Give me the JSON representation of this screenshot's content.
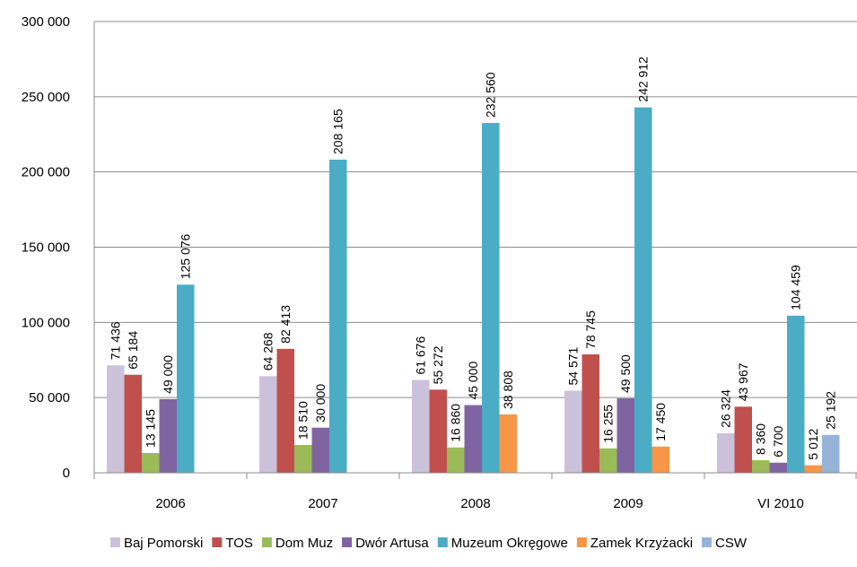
{
  "chart_data": {
    "type": "bar",
    "categories": [
      "2006",
      "2007",
      "2008",
      "2009",
      "VI 2010"
    ],
    "series": [
      {
        "name": "Baj Pomorski",
        "color": "#ccc1da",
        "values": [
          71436,
          64268,
          61676,
          54571,
          26324
        ],
        "labels": [
          "71 436",
          "64 268",
          "61 676",
          "54 571",
          "26 324"
        ]
      },
      {
        "name": "TOS",
        "color": "#c0504d",
        "values": [
          65184,
          82413,
          55272,
          78745,
          43967
        ],
        "labels": [
          "65 184",
          "82 413",
          "55 272",
          "78 745",
          "43 967"
        ]
      },
      {
        "name": "Dom Muz",
        "color": "#9bbb59",
        "values": [
          13145,
          18510,
          16860,
          16255,
          8360
        ],
        "labels": [
          "13 145",
          "18 510",
          "16 860",
          "16 255",
          "8 360"
        ]
      },
      {
        "name": "Dwór Artusa",
        "color": "#8064a2",
        "values": [
          49000,
          30000,
          45000,
          49500,
          6700
        ],
        "labels": [
          "49 000",
          "30 000",
          "45 000",
          "49 500",
          "6 700"
        ]
      },
      {
        "name": "Muzeum Okręgowe",
        "color": "#4bacc6",
        "values": [
          125076,
          208165,
          232560,
          242912,
          104459
        ],
        "labels": [
          "125 076",
          "208 165",
          "232 560",
          "242 912",
          "104 459"
        ]
      },
      {
        "name": "Zamek Krzyżacki",
        "color": "#f79646",
        "values": [
          null,
          null,
          38808,
          17450,
          5012
        ],
        "labels": [
          null,
          null,
          "38 808",
          "17 450",
          "5 012"
        ]
      },
      {
        "name": "CSW",
        "color": "#95b3d7",
        "values": [
          null,
          null,
          null,
          null,
          25192
        ],
        "labels": [
          null,
          null,
          null,
          null,
          "25 192"
        ]
      }
    ],
    "ylim": [
      0,
      300000
    ],
    "yticks": [
      0,
      50000,
      100000,
      150000,
      200000,
      250000,
      300000
    ],
    "ytick_labels": [
      "0",
      "50 000",
      "100 000",
      "150 000",
      "200 000",
      "250 000",
      "300 000"
    ],
    "grid": true,
    "legend_position": "bottom",
    "title": "",
    "xlabel": "",
    "ylabel": ""
  }
}
